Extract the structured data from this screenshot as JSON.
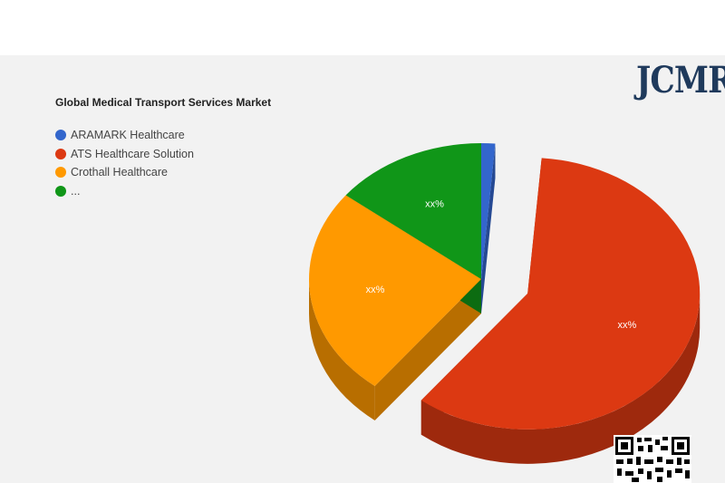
{
  "brand": {
    "logo_text": "JCMR"
  },
  "colors": {
    "aramark": "#3366cc",
    "ats": "#dc3912",
    "crothall": "#ff9900",
    "other": "#109618"
  },
  "chart_data": {
    "type": "pie",
    "title": "Global Medical Transport Services Market",
    "style": "3d-exploded",
    "legend_position": "left-top",
    "slices": [
      {
        "name": "ARAMARK Healthcare",
        "value": 1.3,
        "label": "",
        "color": "#3366cc"
      },
      {
        "name": "ATS Healthcare Solution",
        "value": 59.3,
        "label": "xx%",
        "color": "#dc3912"
      },
      {
        "name": "Crothall Healthcare",
        "value": 25.0,
        "label": "xx%",
        "color": "#ff9900"
      },
      {
        "name": "...",
        "value": 14.4,
        "label": "xx%",
        "color": "#109618"
      }
    ]
  },
  "qr_code": {
    "icon": "qr-code-icon"
  }
}
